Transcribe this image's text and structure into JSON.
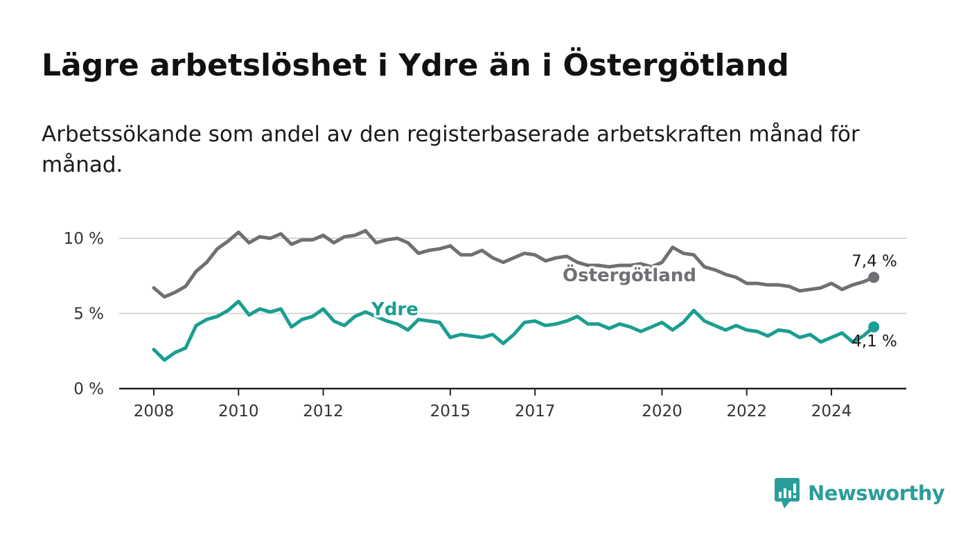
{
  "title": "Lägre arbetslöshet i Ydre än i Östergötland",
  "subtitle": "Arbetssökande som andel av den registerbaserade arbetskraften månad för månad.",
  "brand": {
    "name": "Newsworthy",
    "color": "#2a9d9a",
    "icon": "newsworthy-chart-bubble-icon"
  },
  "chart_data": {
    "type": "line",
    "title": "",
    "xlabel": "",
    "ylabel": "",
    "ylim": [
      0,
      10
    ],
    "xlim": [
      2007.5,
      2026.8
    ],
    "y_ticks": [
      0,
      5,
      10
    ],
    "y_tick_labels": [
      "0 %",
      "5 %",
      "10 %"
    ],
    "x_ticks": [
      2008,
      2010,
      2012,
      2015,
      2017,
      2020,
      2022,
      2024
    ],
    "x_tick_labels": [
      "2008",
      "2010",
      "2012",
      "2015",
      "2017",
      "2020",
      "2022",
      "2024"
    ],
    "grid": true,
    "legend": "inline labels",
    "series": [
      {
        "name": "Östergötland",
        "color": "#6f6f74",
        "end_label": "7,4 %",
        "x": [
          2008.0,
          2008.25,
          2008.5,
          2008.75,
          2009.0,
          2009.25,
          2009.5,
          2009.75,
          2010.0,
          2010.25,
          2010.5,
          2010.75,
          2011.0,
          2011.25,
          2011.5,
          2011.75,
          2012.0,
          2012.25,
          2012.5,
          2012.75,
          2013.0,
          2013.25,
          2013.5,
          2013.75,
          2014.0,
          2014.25,
          2014.5,
          2014.75,
          2015.0,
          2015.25,
          2015.5,
          2015.75,
          2016.0,
          2016.25,
          2016.5,
          2016.75,
          2017.0,
          2017.25,
          2017.5,
          2017.75,
          2018.0,
          2018.25,
          2018.5,
          2018.75,
          2019.0,
          2019.25,
          2019.5,
          2019.75,
          2020.0,
          2020.25,
          2020.5,
          2020.75,
          2021.0,
          2021.25,
          2021.5,
          2021.75,
          2022.0,
          2022.25,
          2022.5,
          2022.75,
          2023.0,
          2023.25,
          2023.5,
          2023.75,
          2024.0,
          2024.25,
          2024.5,
          2024.75,
          2025.0
        ],
        "y": [
          6.7,
          6.1,
          6.4,
          6.8,
          7.8,
          8.4,
          9.3,
          9.8,
          10.4,
          9.7,
          10.1,
          10.0,
          10.3,
          9.6,
          9.9,
          9.9,
          10.2,
          9.7,
          10.1,
          10.2,
          10.5,
          9.7,
          9.9,
          10.0,
          9.7,
          9.0,
          9.2,
          9.3,
          9.5,
          8.9,
          8.9,
          9.2,
          8.7,
          8.4,
          8.7,
          9.0,
          8.9,
          8.5,
          8.7,
          8.8,
          8.4,
          8.2,
          8.2,
          8.1,
          8.2,
          8.2,
          8.3,
          8.1,
          8.4,
          9.4,
          9.0,
          8.9,
          8.1,
          7.9,
          7.6,
          7.4,
          7.0,
          7.0,
          6.9,
          6.9,
          6.8,
          6.5,
          6.6,
          6.7,
          7.0,
          6.6,
          6.9,
          7.1,
          7.4
        ]
      },
      {
        "name": "Ydre",
        "color": "#1a9e91",
        "end_label": "4,1 %",
        "x": [
          2008.0,
          2008.25,
          2008.5,
          2008.75,
          2009.0,
          2009.25,
          2009.5,
          2009.75,
          2010.0,
          2010.25,
          2010.5,
          2010.75,
          2011.0,
          2011.25,
          2011.5,
          2011.75,
          2012.0,
          2012.25,
          2012.5,
          2012.75,
          2013.0,
          2013.25,
          2013.5,
          2013.75,
          2014.0,
          2014.25,
          2014.5,
          2014.75,
          2015.0,
          2015.25,
          2015.5,
          2015.75,
          2016.0,
          2016.25,
          2016.5,
          2016.75,
          2017.0,
          2017.25,
          2017.5,
          2017.75,
          2018.0,
          2018.25,
          2018.5,
          2018.75,
          2019.0,
          2019.25,
          2019.5,
          2019.75,
          2020.0,
          2020.25,
          2020.5,
          2020.75,
          2021.0,
          2021.25,
          2021.5,
          2021.75,
          2022.0,
          2022.25,
          2022.5,
          2022.75,
          2023.0,
          2023.25,
          2023.5,
          2023.75,
          2024.0,
          2024.25,
          2024.5,
          2024.75,
          2025.0
        ],
        "y": [
          2.6,
          1.9,
          2.4,
          2.7,
          4.2,
          4.6,
          4.8,
          5.2,
          5.8,
          4.9,
          5.3,
          5.1,
          5.3,
          4.1,
          4.6,
          4.8,
          5.3,
          4.5,
          4.2,
          4.8,
          5.1,
          4.8,
          4.5,
          4.3,
          3.9,
          4.6,
          4.5,
          4.4,
          3.4,
          3.6,
          3.5,
          3.4,
          3.6,
          3.0,
          3.6,
          4.4,
          4.5,
          4.2,
          4.3,
          4.5,
          4.8,
          4.3,
          4.3,
          4.0,
          4.3,
          4.1,
          3.8,
          4.1,
          4.4,
          3.9,
          4.4,
          5.2,
          4.5,
          4.2,
          3.9,
          4.2,
          3.9,
          3.8,
          3.5,
          3.9,
          3.8,
          3.4,
          3.6,
          3.1,
          3.4,
          3.7,
          3.1,
          3.5,
          4.1
        ]
      }
    ]
  }
}
